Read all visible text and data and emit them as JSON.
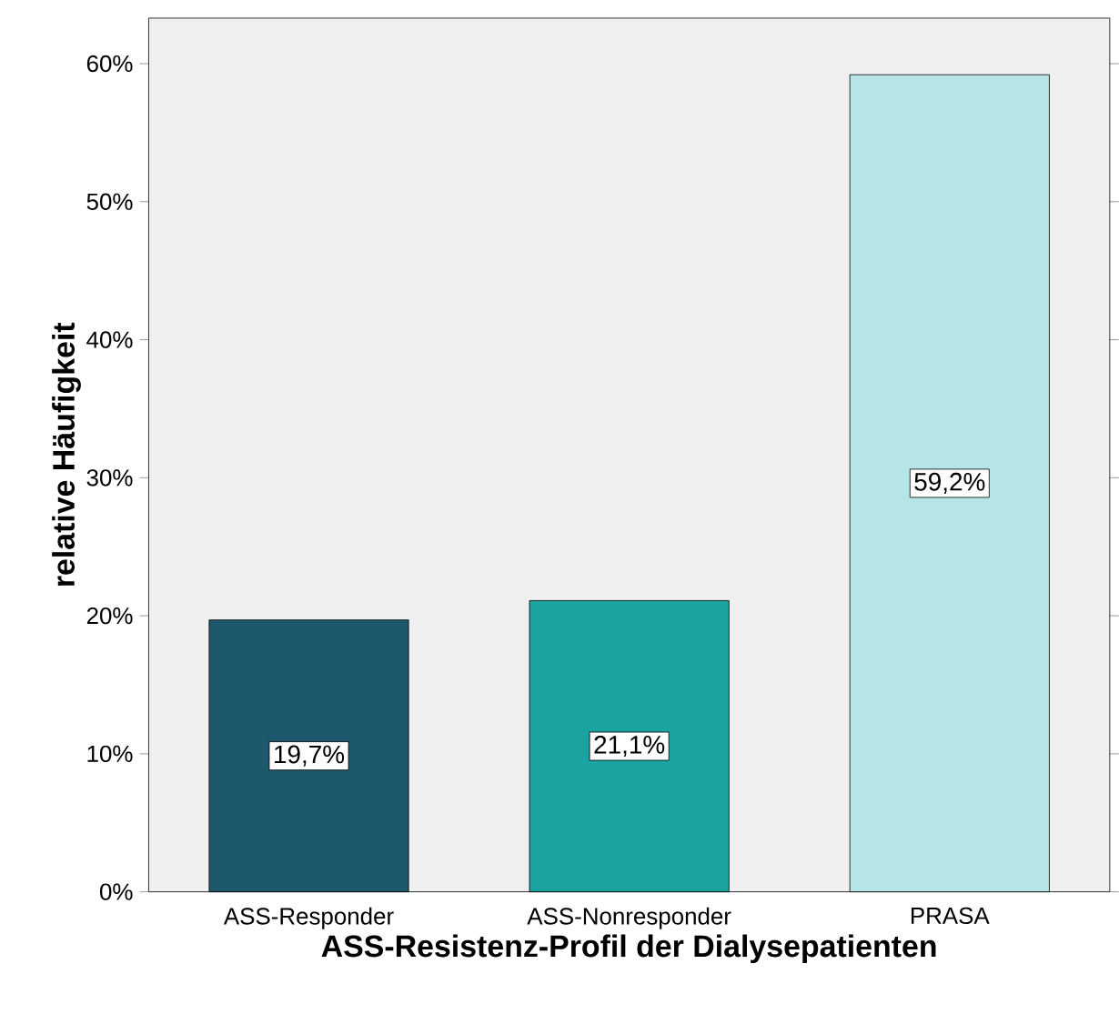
{
  "chart_data": {
    "type": "bar",
    "xlabel": "ASS-Resistenz-Profil der Dialysepatienten",
    "ylabel": "relative Häufigkeit",
    "categories": [
      "ASS-Responder",
      "ASS-Nonresponder",
      "PRASA"
    ],
    "values": [
      19.7,
      21.1,
      59.2
    ],
    "value_labels": [
      "19,7%",
      "21,1%",
      "59,2%"
    ],
    "colors": [
      "#1e586c",
      "#1ba3a1",
      "#b5e5e6"
    ],
    "ylim": [
      0,
      63.3
    ],
    "yticks": [
      {
        "value": 0,
        "label": "0%"
      },
      {
        "value": 10,
        "label": "10%"
      },
      {
        "value": 20,
        "label": "20%"
      },
      {
        "value": 30,
        "label": "30%"
      },
      {
        "value": 40,
        "label": "40%"
      },
      {
        "value": 50,
        "label": "50%"
      },
      {
        "value": 60,
        "label": "60%"
      }
    ],
    "grid": false
  }
}
